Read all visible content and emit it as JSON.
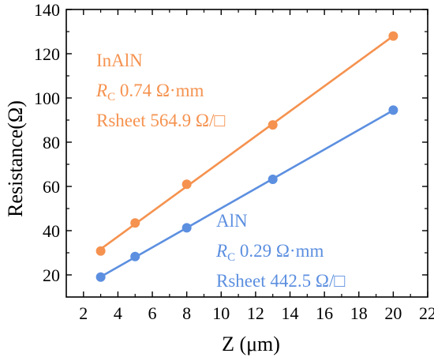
{
  "chart_data": {
    "type": "scatter",
    "xlabel": "Z (μm)",
    "ylabel": "Resistance(Ω)",
    "xlim": [
      1,
      22
    ],
    "ylim": [
      10,
      140
    ],
    "xticks": [
      2,
      4,
      6,
      8,
      10,
      12,
      14,
      16,
      18,
      20,
      22
    ],
    "yticks": [
      20,
      40,
      60,
      80,
      100,
      120,
      140
    ],
    "grid": false,
    "series": [
      {
        "name": "InAlN",
        "color": "#F5924F",
        "x": [
          3,
          5,
          8,
          13,
          20
        ],
        "y": [
          30.8,
          43.5,
          61.0,
          87.8,
          128.0
        ],
        "fit_line": true
      },
      {
        "name": "AlN",
        "color": "#5C8FE0",
        "x": [
          3,
          5,
          8,
          13,
          20
        ],
        "y": [
          19.0,
          28.3,
          41.3,
          63.2,
          94.5
        ],
        "fit_line": true
      }
    ],
    "annotations": [
      {
        "series": "InAlN",
        "color": "#F5924F",
        "name": "InAlN",
        "rc_symbol": "R",
        "rc_subscript": "C",
        "rc_value": " 0.74 Ω·mm",
        "rsheet": "Rsheet 564.9 Ω/□"
      },
      {
        "series": "AlN",
        "color": "#5C8FE0",
        "name": "AlN",
        "rc_symbol": "R",
        "rc_subscript": "C",
        "rc_value": " 0.29 Ω·mm",
        "rsheet": "Rsheet 442.5 Ω/□"
      }
    ]
  }
}
